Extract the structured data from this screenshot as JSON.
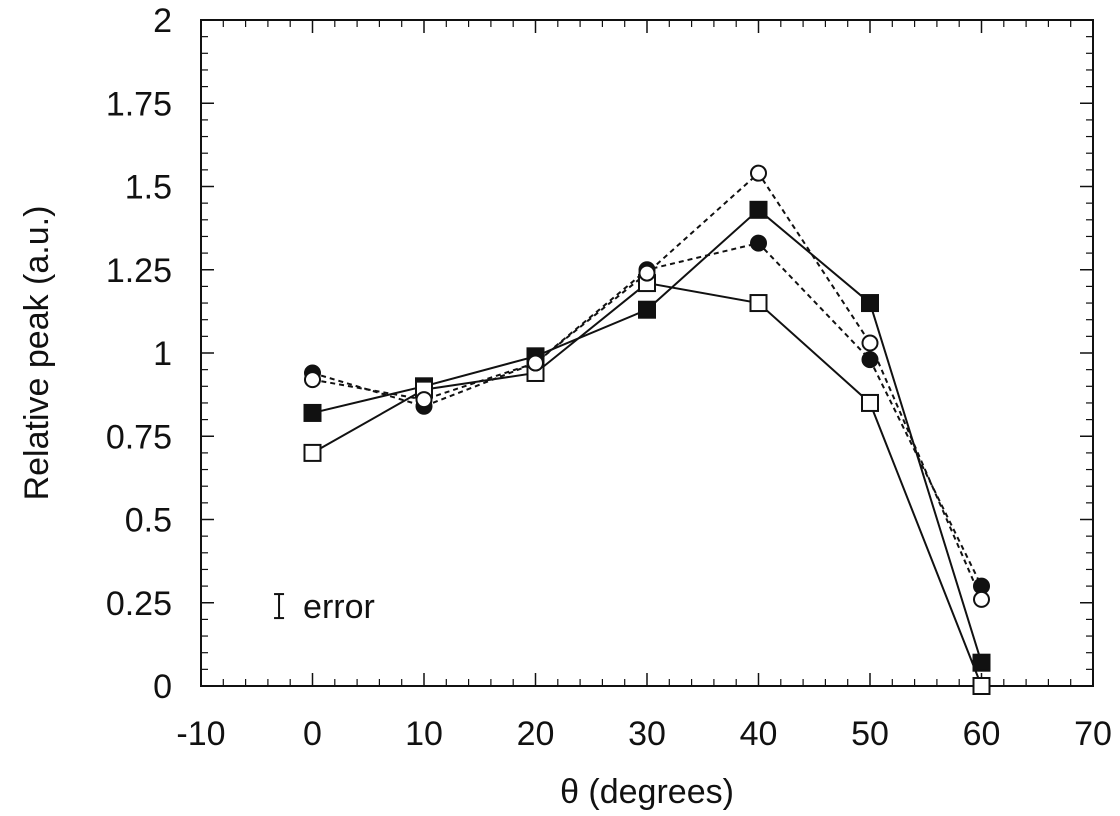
{
  "chart_data": {
    "type": "line",
    "title": "",
    "xlabel": "θ (degrees)",
    "ylabel": "Relative peak (a.u.)",
    "xlim": [
      -10,
      70
    ],
    "ylim": [
      0,
      2
    ],
    "x_ticks": [
      -10,
      0,
      10,
      20,
      30,
      40,
      50,
      60,
      70
    ],
    "x_tick_labels": [
      "-10",
      "0",
      "10",
      "20",
      "30",
      "40",
      "50",
      "60",
      "70"
    ],
    "y_ticks": [
      0,
      0.25,
      0.5,
      0.75,
      1,
      1.25,
      1.5,
      1.75,
      2
    ],
    "y_tick_labels": [
      "0",
      "0.25",
      "0.5",
      "0.75",
      "1",
      "1.25",
      "1.5",
      "1.75",
      "2"
    ],
    "grid": false,
    "legend": false,
    "annotation": {
      "text": "error",
      "symbol": "error-bar",
      "x": -3,
      "y": 0.24
    },
    "series": [
      {
        "marker": "filled-square",
        "line": "solid",
        "color": "#111111",
        "x": [
          0,
          10,
          20,
          30,
          40,
          50,
          60
        ],
        "values": [
          0.82,
          0.9,
          0.99,
          1.13,
          1.43,
          1.15,
          0.07
        ]
      },
      {
        "marker": "open-square",
        "line": "solid",
        "color": "#111111",
        "x": [
          0,
          10,
          20,
          30,
          40,
          50,
          60
        ],
        "values": [
          0.7,
          0.89,
          0.94,
          1.21,
          1.15,
          0.85,
          0.0
        ]
      },
      {
        "marker": "filled-circle",
        "line": "dashed",
        "color": "#111111",
        "x": [
          0,
          10,
          20,
          30,
          40,
          50,
          60
        ],
        "values": [
          0.94,
          0.84,
          0.97,
          1.25,
          1.33,
          0.98,
          0.3
        ]
      },
      {
        "marker": "open-circle",
        "line": "dashed",
        "color": "#111111",
        "x": [
          0,
          10,
          20,
          30,
          40,
          50,
          60
        ],
        "values": [
          0.92,
          0.86,
          0.97,
          1.24,
          1.54,
          1.03,
          0.26
        ]
      }
    ]
  }
}
